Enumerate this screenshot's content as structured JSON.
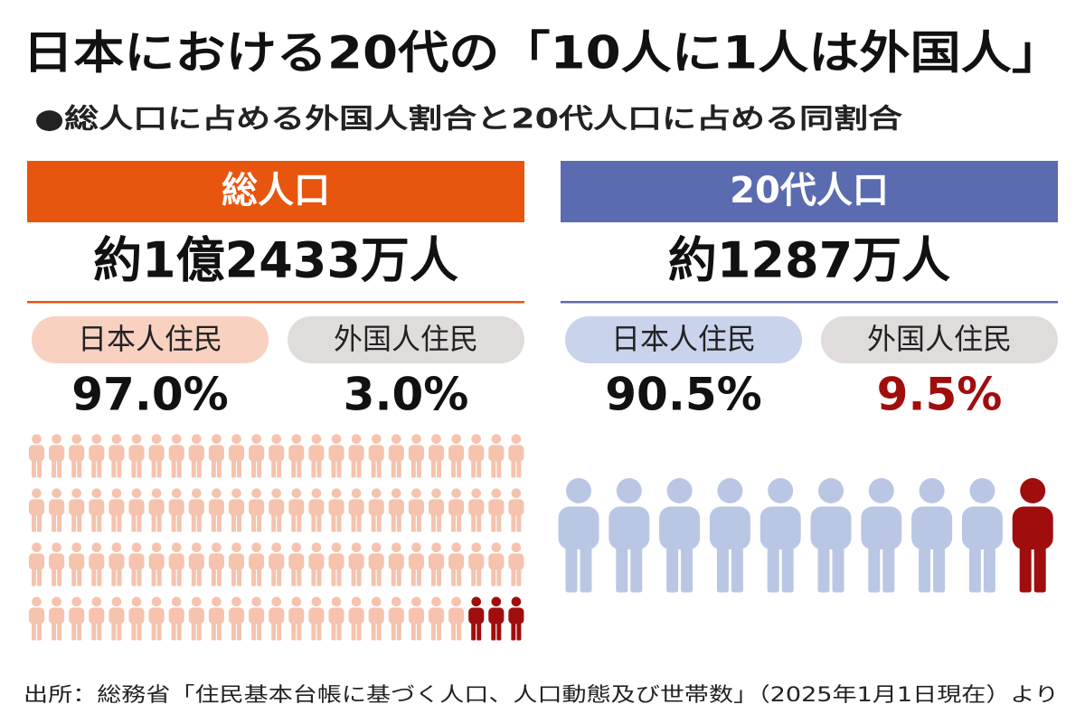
{
  "title": "日本における20代の「10人に1人は外国人」",
  "subtitle": "●総人口に占める外国人割合と20代人口に占める同割合",
  "panels": [
    {
      "header": "総人口",
      "total": "約1億2433万人",
      "groups": [
        {
          "label": "日本人住民",
          "share": "97.0%"
        },
        {
          "label": "外国人住民",
          "share": "3.0%"
        }
      ]
    },
    {
      "header": "20代人口",
      "total": "約1287万人",
      "groups": [
        {
          "label": "日本人住民",
          "share": "90.5%"
        },
        {
          "label": "外国人住民",
          "share": "9.5%"
        }
      ]
    }
  ],
  "source": "出所：総務省「住民基本台帳に基づく人口、人口動態及び世帯数」（2025年1月1日現在）より"
}
